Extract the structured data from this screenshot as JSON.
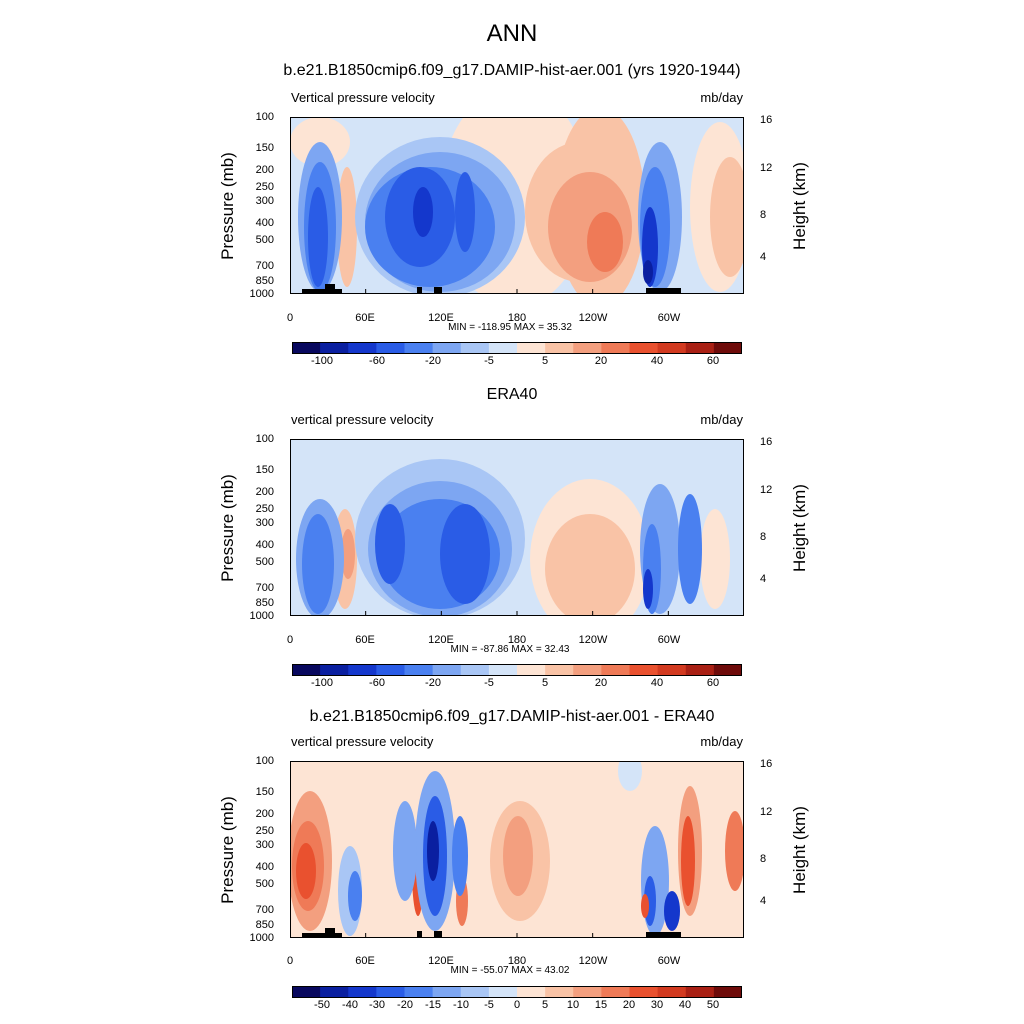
{
  "figure": {
    "title": "ANN"
  },
  "chart_data": [
    {
      "type": "heatmap",
      "title": "b.e21.B1850cmip6.f09_g17.DAMIP-hist-aer.001 (yrs 1920-1944)",
      "left_label": "Vertical pressure velocity",
      "units": "mb/day",
      "ylabel": "Pressure (mb)",
      "ylabel_right": "Height (km)",
      "y_ticks": [
        "100",
        "150",
        "200",
        "250",
        "300",
        "400",
        "500",
        "700",
        "850",
        "1000"
      ],
      "y_ticks_right": [
        "16",
        "12",
        "8",
        "4"
      ],
      "x_ticks": [
        "0",
        "60E",
        "120E",
        "180",
        "120W",
        "60W"
      ],
      "min_max": "MIN = -118.95  MAX =  35.32",
      "colorbar_labels": [
        "-100",
        "-60",
        "-20",
        "-5",
        "5",
        "20",
        "40",
        "60"
      ],
      "min": -118.95,
      "max": 35.32
    },
    {
      "type": "heatmap",
      "title": "ERA40",
      "left_label": "vertical pressure velocity",
      "units": "mb/day",
      "ylabel": "Pressure (mb)",
      "ylabel_right": "Height (km)",
      "y_ticks": [
        "100",
        "150",
        "200",
        "250",
        "300",
        "400",
        "500",
        "700",
        "850",
        "1000"
      ],
      "y_ticks_right": [
        "16",
        "12",
        "8",
        "4"
      ],
      "x_ticks": [
        "0",
        "60E",
        "120E",
        "180",
        "120W",
        "60W"
      ],
      "min_max": "MIN = -87.86  MAX =  32.43",
      "colorbar_labels": [
        "-100",
        "-60",
        "-20",
        "-5",
        "5",
        "20",
        "40",
        "60"
      ],
      "min": -87.86,
      "max": 32.43
    },
    {
      "type": "heatmap",
      "title": "b.e21.B1850cmip6.f09_g17.DAMIP-hist-aer.001 - ERA40",
      "left_label": "vertical pressure velocity",
      "units": "mb/day",
      "ylabel": "Pressure (mb)",
      "ylabel_right": "Height (km)",
      "y_ticks": [
        "100",
        "150",
        "200",
        "250",
        "300",
        "400",
        "500",
        "700",
        "850",
        "1000"
      ],
      "y_ticks_right": [
        "16",
        "12",
        "8",
        "4"
      ],
      "x_ticks": [
        "0",
        "60E",
        "120E",
        "180",
        "120W",
        "60W"
      ],
      "min_max": "MIN = -55.07  MAX =  43.02",
      "colorbar_labels": [
        "-50",
        "-40",
        "-30",
        "-20",
        "-15",
        "-10",
        "-5",
        "0",
        "5",
        "10",
        "15",
        "20",
        "30",
        "40",
        "50"
      ],
      "min": -55.07,
      "max": 43.02
    }
  ],
  "colors": {
    "colorbar_main": [
      "#08085e",
      "#0a1fa0",
      "#1437cc",
      "#2a5ce6",
      "#4a80f0",
      "#7da6f2",
      "#a9c6f5",
      "#d4e4f8",
      "#fde4d4",
      "#f9c3a6",
      "#f39f7f",
      "#ef7a57",
      "#e9512f",
      "#d23a20",
      "#a92014",
      "#6e0b0a"
    ],
    "colorbar_diff": [
      "#08085e",
      "#0a1fa0",
      "#1437cc",
      "#2a5ce6",
      "#4a80f0",
      "#7da6f2",
      "#a9c6f5",
      "#d4e4f8",
      "#fde4d4",
      "#f9c3a6",
      "#f39f7f",
      "#ef7a57",
      "#e9512f",
      "#d23a20",
      "#a92014",
      "#6e0b0a"
    ]
  }
}
